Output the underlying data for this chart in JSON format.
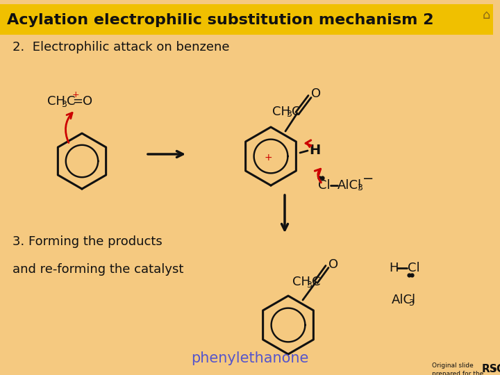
{
  "bg_color": "#F5C980",
  "title_bg": "#F0C000",
  "title_text": "Acylation electrophilic substitution mechanism 2",
  "subtitle": "2.  Electrophilic attack on benzene",
  "step3_text": "3. Forming the products",
  "step3b_text": "and re-forming the catalyst",
  "product_label": "phenylethanone",
  "product_label_color": "#5555CC",
  "text_color": "#111111",
  "red_color": "#CC0000",
  "dark": "#111111",
  "title_fontsize": 16,
  "body_fontsize": 13,
  "chem_fontsize": 13,
  "sub_fontsize": 9
}
